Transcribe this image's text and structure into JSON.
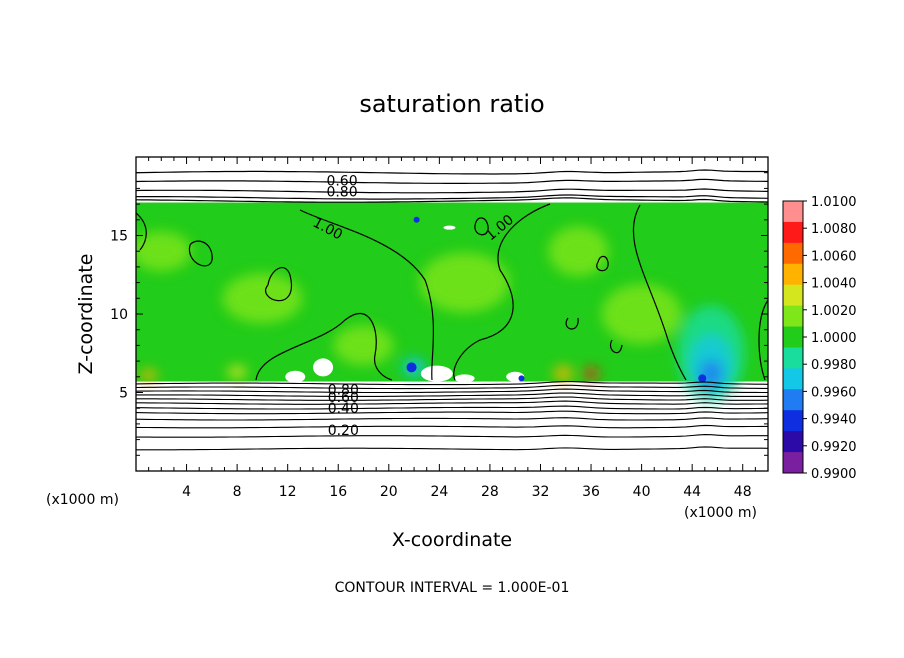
{
  "chart_data": {
    "type": "heatmap",
    "title": "saturation ratio",
    "xlabel": "X-coordinate",
    "ylabel": "Z-coordinate",
    "x_unit_label": "(x1000 m)",
    "z_unit_label": "(x1000 m)",
    "xlim": [
      0,
      50
    ],
    "ylim": [
      0,
      20
    ],
    "x_ticks": [
      4,
      8,
      12,
      16,
      20,
      24,
      28,
      32,
      36,
      40,
      44,
      48
    ],
    "y_ticks": [
      5,
      10,
      15
    ],
    "colorbar": {
      "min": 0.99,
      "max": 1.01,
      "labels": [
        "1.0100",
        "1.0080",
        "1.0060",
        "1.0040",
        "1.0020",
        "1.0000",
        "0.9980",
        "0.9960",
        "0.9940",
        "0.9920",
        "0.9900"
      ],
      "colors": [
        "#7a1fa0",
        "#2b0aa8",
        "#0f2ee0",
        "#1f7cf2",
        "#12c8e6",
        "#19dd9d",
        "#22cc1a",
        "#7fe61a",
        "#d4e61e",
        "#ffb300",
        "#ff6a00",
        "#ff1a1a",
        "#ff8f8f"
      ]
    },
    "shaded_layer": {
      "z_bottom": 5.7,
      "z_top": 17.1,
      "dominant_value": 1.0005
    },
    "contour_levels": [
      {
        "level": 0.2,
        "label": "0.20"
      },
      {
        "level": 0.4,
        "label": "0.40"
      },
      {
        "level": 0.6,
        "label": "0.60"
      },
      {
        "level": 0.8,
        "label": "0.80"
      },
      {
        "level": 1.0,
        "label": "1.00"
      }
    ],
    "upper_contour_labels": [
      {
        "text": "0.60",
        "x": 16.3,
        "z": 18.5
      },
      {
        "text": "0.80",
        "x": 16.3,
        "z": 17.8
      }
    ],
    "lower_contour_labels": [
      {
        "text": "0.80",
        "x": 16.4,
        "z": 5.2
      },
      {
        "text": "0.60",
        "x": 16.4,
        "z": 4.7
      },
      {
        "text": "0.40",
        "x": 16.4,
        "z": 4.0
      },
      {
        "text": "0.20",
        "x": 16.4,
        "z": 2.6
      }
    ],
    "saturation_contour_labels": [
      {
        "text": "1.00",
        "x": 15.0,
        "z": 15.5
      },
      {
        "text": "1.00",
        "x": 29.0,
        "z": 15.6
      }
    ],
    "footer": "CONTOUR INTERVAL = 1.000E-01"
  }
}
